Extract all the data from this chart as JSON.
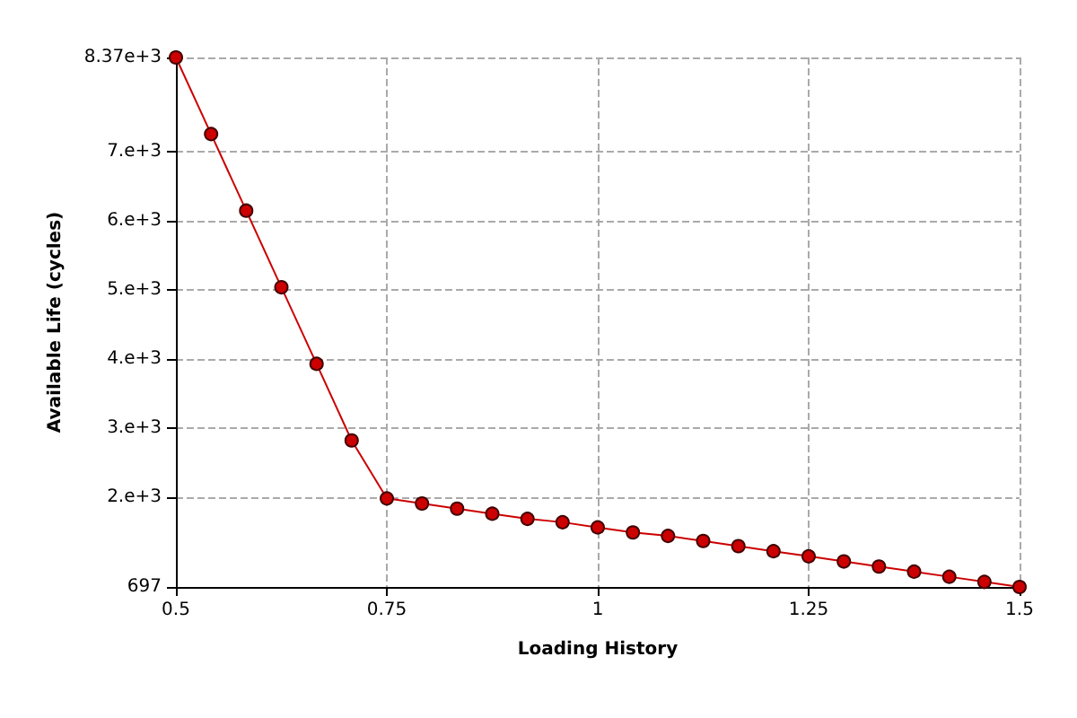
{
  "chart_data": {
    "type": "line",
    "xlabel": "Loading History",
    "ylabel": "Available Life (cycles)",
    "x": [
      0.5,
      0.5417,
      0.5833,
      0.625,
      0.6667,
      0.7083,
      0.75,
      0.7917,
      0.8333,
      0.875,
      0.9167,
      0.9583,
      1.0,
      1.0417,
      1.0833,
      1.125,
      1.1667,
      1.2083,
      1.25,
      1.2917,
      1.3333,
      1.375,
      1.4167,
      1.4583,
      1.5
    ],
    "series": [
      {
        "color": "#cc0000",
        "values": [
          8370,
          7260,
          6150,
          5040,
          3930,
          2820,
          1980,
          1906,
          1832,
          1758,
          1684,
          1635,
          1560,
          1487,
          1437,
          1363,
          1289,
          1215,
          1141,
          1067,
          993,
          919,
          845,
          771,
          697
        ]
      }
    ],
    "xlim": [
      0.5,
      1.5
    ],
    "xticks": [
      0.5,
      0.75,
      1,
      1.25,
      1.5
    ],
    "ylim": [
      697,
      8370
    ],
    "yticks": [
      697,
      {
        "value": 2000,
        "label": "2.e+3"
      },
      {
        "value": 3000,
        "label": "3.e+3"
      },
      {
        "value": 4000,
        "label": "4.e+3"
      },
      {
        "value": 5000,
        "label": "5.e+3"
      },
      {
        "value": 6000,
        "label": "6.e+3"
      },
      {
        "value": 7000,
        "label": "7.e+3"
      },
      {
        "value": 8370,
        "label": "8.37e+3"
      }
    ],
    "grid": true,
    "marker": "circle",
    "line_style": "solid"
  }
}
